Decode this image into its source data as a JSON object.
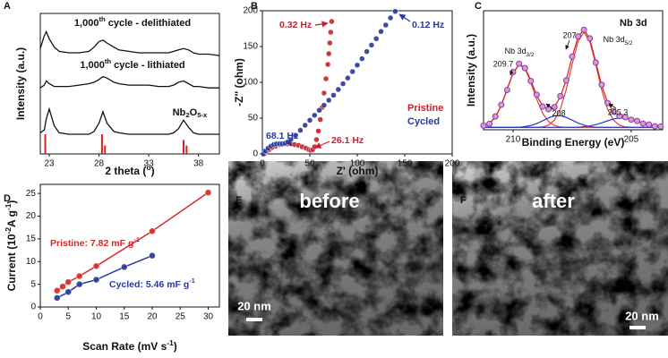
{
  "chart_data": [
    {
      "panel": "A",
      "type": "line",
      "x_label": {
        "parts": [
          "2 theta (",
          "o",
          ")"
        ],
        "script": "sup"
      },
      "y_label": "Intensity (a.u.)",
      "x": [
        22.1,
        22.5,
        22.7,
        23,
        23.5,
        24,
        25,
        26,
        27,
        27.5,
        28,
        28.4,
        28.8,
        29.5,
        30,
        31,
        32,
        33,
        34,
        35,
        35.5,
        36,
        36.5,
        37,
        37.5,
        38,
        39,
        40.1
      ],
      "xlim": [
        22.1,
        40.1
      ],
      "xticks": [
        23,
        28,
        33,
        38
      ],
      "ylim": [
        0,
        100
      ],
      "series": [
        {
          "name": {
            "parts": [
              "1,000",
              "th",
              " cycle - delithiated"
            ],
            "script": "sup"
          },
          "color": "#111111",
          "values": [
            75,
            84,
            87,
            82,
            76,
            73,
            72,
            72,
            73,
            76,
            80,
            81,
            79,
            76,
            74,
            73,
            72,
            72,
            72,
            72,
            73,
            74,
            75,
            74,
            72,
            71,
            71,
            70
          ]
        },
        {
          "name": {
            "parts": [
              "1,000",
              "th",
              " cycle - lithiated"
            ],
            "script": "sup"
          },
          "color": "#111111",
          "values": [
            47,
            49,
            52,
            50,
            48,
            48,
            48,
            49,
            50,
            51,
            53,
            55,
            54,
            51,
            50,
            49,
            49,
            49,
            48,
            48,
            49,
            51,
            52,
            50,
            48,
            48,
            47,
            47
          ]
        },
        {
          "name": {
            "parts": [
              "Nb",
              "2",
              "O",
              "5-x"
            ],
            "script": "sub"
          },
          "color": "#111111",
          "values": [
            15,
            17,
            25,
            32,
            20,
            15,
            14,
            14,
            14,
            16,
            22,
            30,
            22,
            16,
            15,
            14,
            14,
            14,
            14,
            14,
            15,
            18,
            24,
            19,
            15,
            14,
            14,
            14
          ]
        }
      ],
      "reference": {
        "color": "#e0201b",
        "x": [
          22.6,
          28.3,
          28.6,
          36.5,
          36.8
        ],
        "values": [
          14,
          14,
          6,
          10,
          6
        ]
      }
    },
    {
      "panel": "B",
      "type": "scatter",
      "x_label": "Z' (ohm)",
      "y_label": "-Z'' (ohm)",
      "xlim": [
        0,
        200
      ],
      "ylim": [
        0,
        200
      ],
      "xticks": [
        0,
        50,
        100,
        150,
        200
      ],
      "yticks": [
        0,
        50,
        100,
        150,
        200
      ],
      "series": [
        {
          "name": "Pristine",
          "color": "#c8202a",
          "x": [
            2,
            4,
            7,
            10,
            14,
            18,
            22,
            26,
            30,
            34,
            38,
            42,
            46,
            49,
            51,
            53,
            55,
            57,
            59,
            61,
            63,
            65,
            67,
            69,
            70,
            71,
            72,
            73
          ],
          "values": [
            0,
            3,
            6,
            9,
            11,
            13,
            14,
            14,
            14,
            13,
            12,
            10,
            8,
            6,
            5,
            6,
            10,
            20,
            32,
            48,
            65,
            85,
            105,
            125,
            140,
            155,
            170,
            185
          ]
        },
        {
          "name": "Cycled",
          "color": "#27399b",
          "x": [
            1,
            3,
            6,
            9,
            12,
            15,
            18,
            21,
            24,
            27,
            30,
            35,
            40,
            45,
            50,
            55,
            60,
            65,
            70,
            75,
            80,
            85,
            90,
            95,
            100,
            105,
            110,
            115,
            120,
            125,
            130,
            135,
            140
          ],
          "values": [
            0,
            4,
            8,
            11,
            13,
            14,
            14,
            14,
            15,
            17,
            20,
            26,
            33,
            40,
            47,
            54,
            61,
            68,
            75,
            82,
            90,
            98,
            106,
            115,
            124,
            133,
            143,
            152,
            161,
            171,
            180,
            190,
            199
          ]
        }
      ],
      "annotations": [
        {
          "text": "0.32 Hz",
          "color": "#c8202a"
        },
        {
          "text": "0.12 Hz",
          "color": "#27399b"
        },
        {
          "text": "68.1 Hz",
          "color": "#27399b"
        },
        {
          "text": "26.1 Hz",
          "color": "#c8202a"
        }
      ]
    },
    {
      "panel": "C",
      "type": "line",
      "title": "Nb 3d",
      "x_label": "Binding Energy (eV)",
      "y_label": "Intensity (a.u.)",
      "xlim": [
        211.25,
        203.67
      ],
      "xticks": [
        210,
        205
      ],
      "ylim": [
        0,
        100
      ],
      "x": [
        211.25,
        211.0,
        210.75,
        210.5,
        210.25,
        210.0,
        209.75,
        209.5,
        209.25,
        209.0,
        208.75,
        208.5,
        208.25,
        208.0,
        207.75,
        207.5,
        207.25,
        207.0,
        206.75,
        206.5,
        206.25,
        206.0,
        205.75,
        205.5,
        205.25,
        205.0,
        204.75,
        204.5,
        204.25,
        204.0,
        203.75
      ],
      "series": [
        {
          "color": "#8a8a8a",
          "values": [
            2,
            2,
            2,
            2,
            2,
            2,
            2,
            2,
            2,
            2,
            2,
            2,
            2,
            2,
            2,
            2,
            2,
            2,
            2,
            2,
            2,
            2,
            2,
            2,
            2,
            2,
            2,
            2,
            2,
            2,
            2
          ]
        },
        {
          "color": "#e0413a",
          "values": [
            3,
            5.2,
            10.6,
            20.4,
            34.2,
            47.7,
            54.8,
            51.6,
            39.9,
            25.6,
            13.9,
            6.9,
            3.6,
            2.4,
            2,
            2,
            2,
            2,
            2,
            2,
            2,
            2,
            2,
            2,
            2,
            2,
            2,
            2,
            2,
            2,
            2
          ]
        },
        {
          "color": "#e0413a",
          "values": [
            2,
            2,
            2,
            2,
            2,
            2,
            2,
            2,
            2,
            2,
            2.5,
            3.9,
            8.1,
            17.4,
            33.6,
            54.9,
            74.1,
            82,
            74.1,
            54.9,
            33.6,
            17.4,
            8.1,
            3.9,
            2.5,
            2,
            2,
            2,
            2,
            2,
            2
          ]
        },
        {
          "color": "#2536c8",
          "values": [
            2,
            2,
            2,
            2,
            2,
            2,
            2,
            2.7,
            3.6,
            5.2,
            7.6,
            10,
            11.7,
            11.9,
            10.4,
            8.1,
            5.7,
            3.9,
            2.8,
            2,
            2,
            2,
            2,
            2,
            2,
            2,
            2,
            2,
            2,
            2,
            2
          ]
        },
        {
          "color": "#2536c8",
          "values": [
            2,
            2,
            2,
            2,
            2,
            2,
            2,
            2,
            2,
            2,
            2,
            2,
            2,
            2,
            2,
            2,
            2,
            2.6,
            3.2,
            4.3,
            5.8,
            7.5,
            9.1,
            9.9,
            9.8,
            8.8,
            7.2,
            5.5,
            4.1,
            3.1,
            2.5
          ]
        },
        {
          "color": "#d2202a",
          "values": [
            3,
            5.2,
            10.6,
            20.4,
            34.2,
            47.7,
            54.8,
            52.3,
            41.5,
            28.8,
            20.0,
            16.8,
            19.4,
            27.7,
            42.0,
            61.0,
            77.8,
            84.5,
            76.1,
            57.2,
            37.4,
            22.9,
            15.2,
            11.8,
            10.3,
            8.8,
            7.2,
            5.5,
            4.1,
            3.1,
            2.5
          ]
        },
        {
          "color": "#8e3a9e",
          "marker": "circle",
          "values": [
            3.5,
            5.0,
            11.2,
            21.0,
            33.5,
            48.5,
            55.5,
            51.8,
            41.0,
            29.5,
            19.5,
            17.3,
            19.0,
            28.3,
            41.5,
            61.5,
            78.5,
            84.0,
            76.8,
            56.5,
            37.9,
            22.5,
            15.6,
            11.5,
            10.6,
            8.5,
            7.4,
            5.2,
            4.4,
            2.9,
            2.7
          ]
        }
      ],
      "annotations": [
        {
          "text": "209.7"
        },
        {
          "text": "207"
        },
        {
          "text": "208"
        },
        {
          "text": "205.3"
        },
        {
          "text": {
            "parts": [
              "Nb 3d",
              "3/2"
            ],
            "script": "sub"
          }
        },
        {
          "text": {
            "parts": [
              "Nb 3d",
              "5/2"
            ],
            "script": "sub"
          }
        }
      ]
    },
    {
      "panel": "D",
      "type": "scatter",
      "line": true,
      "x_label": {
        "parts": [
          "Scan Rate (mV s",
          "-1",
          ")"
        ],
        "script": "sup"
      },
      "y_label": {
        "parts": [
          "Current (10",
          "-2",
          "A g",
          "-1",
          ")"
        ],
        "script": "sup"
      },
      "xlim": [
        0,
        32
      ],
      "ylim": [
        0,
        27
      ],
      "xticks": [
        0,
        5,
        10,
        15,
        20,
        25,
        30
      ],
      "yticks": [
        0,
        5,
        10,
        15,
        20,
        25
      ],
      "series": [
        {
          "name": {
            "parts": [
              "Pristine: 7.82 mF g",
              "-1"
            ],
            "script": "sup"
          },
          "color": "#d62a2a",
          "x": [
            3,
            4,
            5,
            7,
            10,
            20,
            30
          ],
          "values": [
            3.6,
            4.5,
            5.5,
            6.8,
            9,
            16.7,
            25.2
          ]
        },
        {
          "name": {
            "parts": [
              "Cycled: 5.46 mF g",
              "-1"
            ],
            "script": "sup"
          },
          "color": "#27399b",
          "x": [
            3,
            5,
            7,
            10,
            15,
            20
          ],
          "values": [
            2,
            3.3,
            5,
            6,
            8.8,
            11.3
          ]
        }
      ]
    }
  ],
  "images": [
    {
      "panel": "E",
      "caption": "before",
      "scale_bar": "20 nm"
    },
    {
      "panel": "F",
      "caption": "after",
      "scale_bar": "20 nm"
    }
  ]
}
